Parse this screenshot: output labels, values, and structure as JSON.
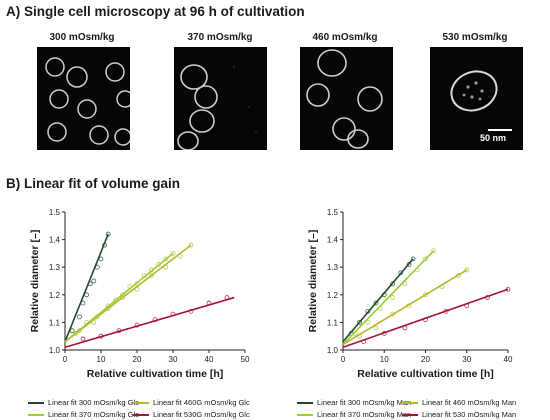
{
  "section_a": {
    "title": "A) Single cell microscopy at 96 h of cultivation",
    "panels": [
      {
        "label": "300 mOsm/kg"
      },
      {
        "label": "370 mOsm/kg"
      },
      {
        "label": "460 mOsm/kg"
      },
      {
        "label": "530 mOsm/kg"
      }
    ],
    "scale_label": "50 nm"
  },
  "section_b": {
    "title": "B) Linear fit of volume gain"
  },
  "colors": {
    "c300": "#1f4a2e",
    "c370": "#9acd32",
    "c460": "#b5b82c",
    "c530": "#a31535"
  },
  "chart_data": [
    {
      "type": "scatter",
      "xlabel": "Relative cultivation time [h]",
      "ylabel": "Relative diameter [–]",
      "xlim": [
        0,
        50
      ],
      "ylim": [
        1.0,
        1.5
      ],
      "xticks": [
        "0",
        "10",
        "20",
        "30",
        "40",
        "50"
      ],
      "yticks": [
        "1.0",
        "1.1",
        "1.2",
        "1.3",
        "1.4",
        "1.5"
      ],
      "series": [
        {
          "name": "Linear fit 300 mOsm/kg Glc",
          "color": "#1f4a2e",
          "fit": [
            [
              0,
              1.03
            ],
            [
              12,
              1.42
            ]
          ],
          "x": [
            2,
            4,
            5,
            6,
            7,
            8,
            9,
            10,
            11,
            12
          ],
          "y": [
            1.07,
            1.12,
            1.17,
            1.2,
            1.24,
            1.25,
            1.3,
            1.33,
            1.38,
            1.42
          ]
        },
        {
          "name": "Linear fit 370 mOsm/kg Glc",
          "color": "#9acd32",
          "fit": [
            [
              0,
              1.03
            ],
            [
              30,
              1.35
            ]
          ],
          "x": [
            3,
            6,
            9,
            12,
            14,
            16,
            18,
            20,
            22,
            24,
            26,
            28,
            30
          ],
          "y": [
            1.06,
            1.1,
            1.12,
            1.16,
            1.18,
            1.2,
            1.23,
            1.24,
            1.27,
            1.29,
            1.31,
            1.33,
            1.35
          ]
        },
        {
          "name": "Linear fit 460G mOsm/kg Glc",
          "color": "#b5b82c",
          "fit": [
            [
              0,
              1.03
            ],
            [
              35,
              1.38
            ]
          ],
          "x": [
            4,
            8,
            12,
            16,
            20,
            24,
            28,
            32,
            35
          ],
          "y": [
            1.07,
            1.1,
            1.15,
            1.19,
            1.22,
            1.27,
            1.3,
            1.34,
            1.38
          ]
        },
        {
          "name": "Linear fit 530G mOsm/kg Glc",
          "color": "#a31535",
          "fit": [
            [
              0,
              1.01
            ],
            [
              47,
              1.19
            ]
          ],
          "x": [
            5,
            10,
            15,
            20,
            25,
            30,
            35,
            40,
            45
          ],
          "y": [
            1.04,
            1.05,
            1.07,
            1.09,
            1.11,
            1.13,
            1.14,
            1.17,
            1.19
          ]
        }
      ]
    },
    {
      "type": "scatter",
      "xlabel": "Relative cultivation time [h]",
      "ylabel": "Relative diameter [–]",
      "xlim": [
        0,
        40
      ],
      "ylim": [
        1.0,
        1.5
      ],
      "xticks": [
        "0",
        "10",
        "20",
        "30",
        "40"
      ],
      "yticks": [
        "1.0",
        "1.1",
        "1.2",
        "1.3",
        "1.4",
        "1.5"
      ],
      "series": [
        {
          "name": "Linear fit 300 mOsm/kg Man",
          "color": "#1f4a2e",
          "fit": [
            [
              0,
              1.03
            ],
            [
              17,
              1.33
            ]
          ],
          "x": [
            2,
            4,
            6,
            8,
            10,
            12,
            14,
            16,
            17
          ],
          "y": [
            1.06,
            1.1,
            1.14,
            1.17,
            1.2,
            1.24,
            1.28,
            1.31,
            1.33
          ]
        },
        {
          "name": "Linear fit 370 mOsm/kg Man",
          "color": "#9acd32",
          "fit": [
            [
              0,
              1.02
            ],
            [
              22,
              1.36
            ]
          ],
          "x": [
            3,
            6,
            9,
            12,
            15,
            18,
            20,
            22
          ],
          "y": [
            1.06,
            1.1,
            1.15,
            1.19,
            1.24,
            1.29,
            1.33,
            1.36
          ]
        },
        {
          "name": "Linear fit 460 mOsm/kg Man",
          "color": "#b5b82c",
          "fit": [
            [
              0,
              1.02
            ],
            [
              30,
              1.29
            ]
          ],
          "x": [
            4,
            8,
            12,
            16,
            20,
            24,
            28,
            30
          ],
          "y": [
            1.05,
            1.08,
            1.13,
            1.16,
            1.2,
            1.23,
            1.27,
            1.29
          ]
        },
        {
          "name": "Linear fit 530 mOsm/kg Man",
          "color": "#a31535",
          "fit": [
            [
              0,
              1.01
            ],
            [
              40,
              1.22
            ]
          ],
          "x": [
            5,
            10,
            15,
            20,
            25,
            30,
            35,
            40
          ],
          "y": [
            1.03,
            1.06,
            1.08,
            1.11,
            1.14,
            1.16,
            1.19,
            1.22
          ]
        }
      ]
    }
  ]
}
